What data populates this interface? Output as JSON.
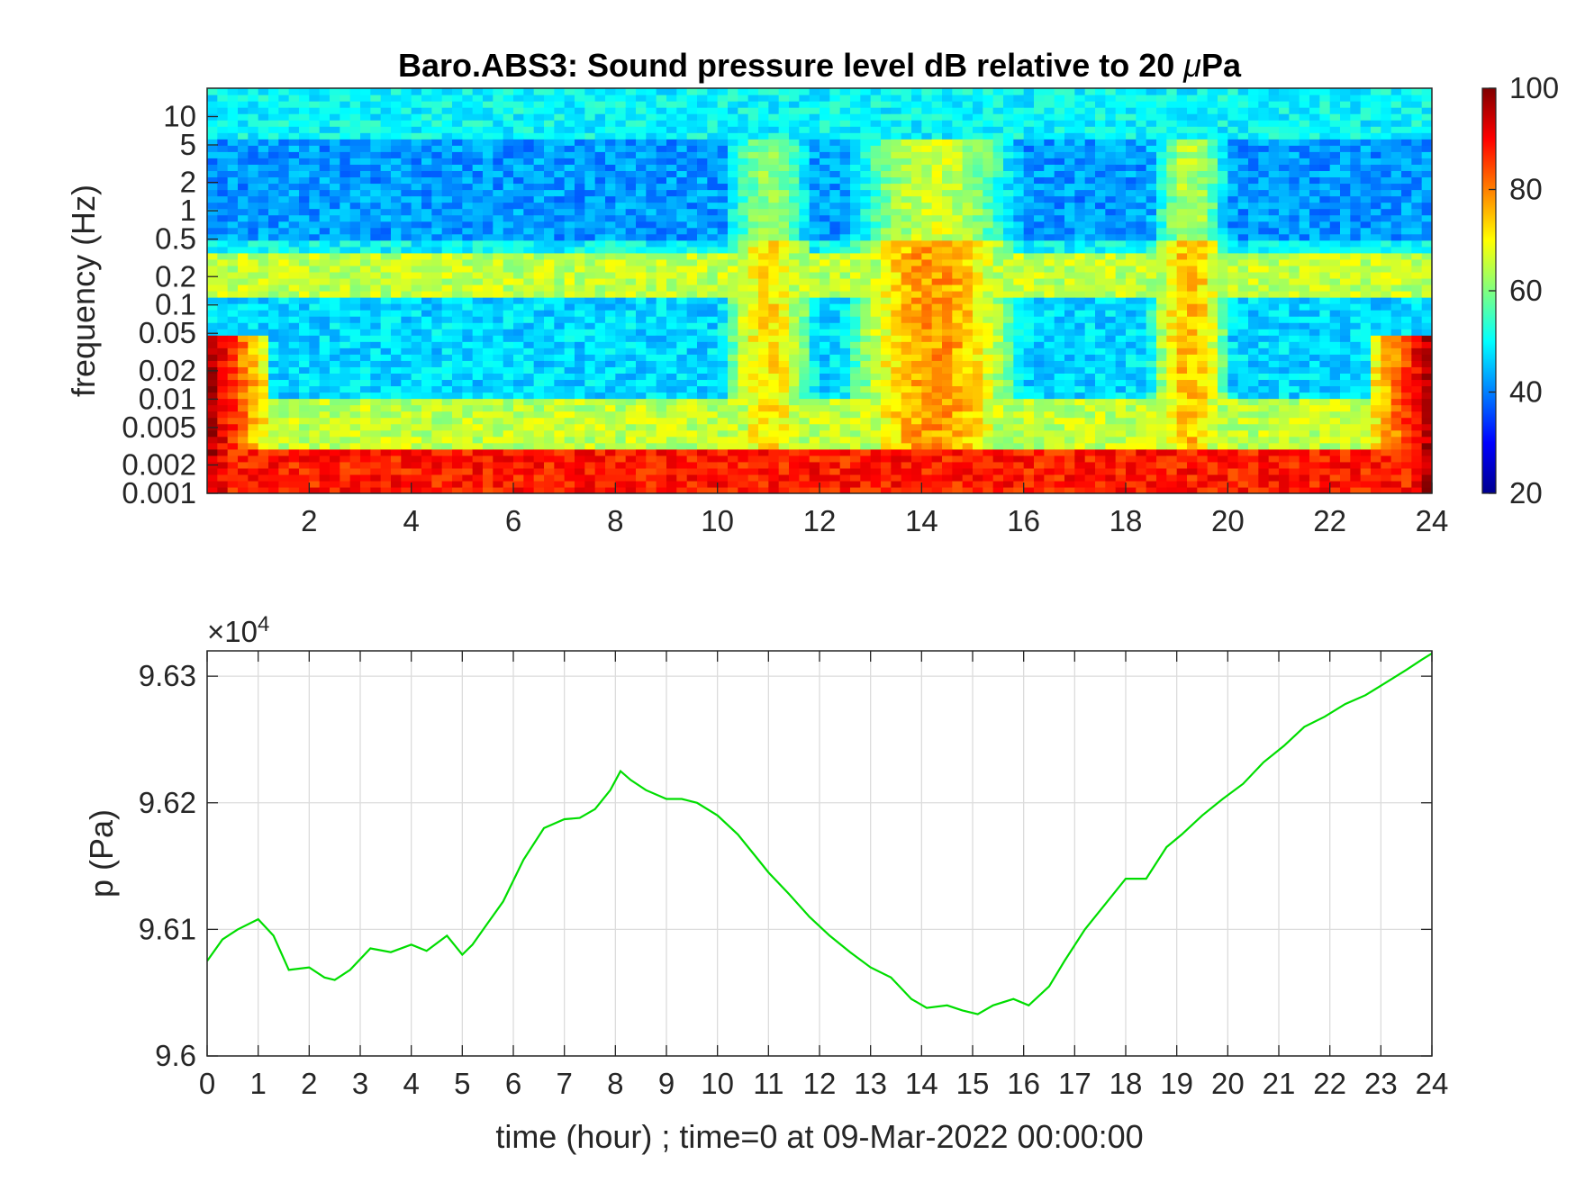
{
  "chart_data": [
    {
      "type": "heatmap",
      "title_prefix": "Baro.ABS3: Sound pressure level dB relative to 20 ",
      "title_mu": "μ",
      "title_suffix": "Pa",
      "xlabel": "",
      "ylabel": "frequency (Hz)",
      "xlim": [
        0,
        24
      ],
      "x_ticks": [
        2,
        4,
        6,
        8,
        10,
        12,
        14,
        16,
        18,
        20,
        22,
        24
      ],
      "y_scale": "log",
      "ylim": [
        0.001,
        20
      ],
      "y_ticks": [
        {
          "value": 0.001,
          "label": "0.001"
        },
        {
          "value": 0.002,
          "label": "0.002"
        },
        {
          "value": 0.005,
          "label": "0.005"
        },
        {
          "value": 0.01,
          "label": "0.01"
        },
        {
          "value": 0.02,
          "label": "0.02"
        },
        {
          "value": 0.05,
          "label": "0.05"
        },
        {
          "value": 0.1,
          "label": "0.1"
        },
        {
          "value": 0.2,
          "label": "0.2"
        },
        {
          "value": 0.5,
          "label": "0.5"
        },
        {
          "value": 1,
          "label": "1"
        },
        {
          "value": 2,
          "label": "2"
        },
        {
          "value": 5,
          "label": "5"
        },
        {
          "value": 10,
          "label": "10"
        }
      ],
      "colormap": "jet",
      "colorbar": {
        "range": [
          20,
          100
        ],
        "ticks": [
          20,
          40,
          60,
          80,
          100
        ]
      },
      "bands_db": [
        {
          "freq_range": [
            6,
            20
          ],
          "level": 50
        },
        {
          "freq_range": [
            0.5,
            6
          ],
          "level": 42
        },
        {
          "freq_range": [
            0.12,
            0.35
          ],
          "level": 65
        },
        {
          "freq_range": [
            0.01,
            0.12
          ],
          "level": 47
        },
        {
          "freq_range": [
            0.003,
            0.01
          ],
          "level": 65
        },
        {
          "freq_range": [
            0.001,
            0.003
          ],
          "level": 88
        }
      ],
      "active_periods_db": [
        {
          "hours": [
            10,
            12
          ],
          "level": 72
        },
        {
          "hours": [
            12,
            16.5
          ],
          "level": 78
        },
        {
          "hours": [
            18.5,
            20
          ],
          "level": 75
        }
      ]
    },
    {
      "type": "line",
      "xlabel": "time (hour) ; time=0 at 09-Mar-2022 00:00:00",
      "ylabel": "p (Pa)",
      "exponent_label": "×10",
      "exponent_power": "4",
      "xlim": [
        0,
        24
      ],
      "ylim": [
        96000,
        96320
      ],
      "x_ticks": [
        0,
        1,
        2,
        3,
        4,
        5,
        6,
        7,
        8,
        9,
        10,
        11,
        12,
        13,
        14,
        15,
        16,
        17,
        18,
        19,
        20,
        21,
        22,
        23,
        24
      ],
      "y_ticks": [
        {
          "value": 96000,
          "label": "9.6"
        },
        {
          "value": 96100,
          "label": "9.61"
        },
        {
          "value": 96200,
          "label": "9.62"
        },
        {
          "value": 96300,
          "label": "9.63"
        }
      ],
      "grid": true,
      "line_color": "#00dd00",
      "series": [
        {
          "x": [
            0,
            0.3,
            0.6,
            1.0,
            1.3,
            1.6,
            2.0,
            2.3,
            2.5,
            2.8,
            3.2,
            3.6,
            4.0,
            4.3,
            4.7,
            5.0,
            5.2,
            5.5,
            5.8,
            6.2,
            6.6,
            7.0,
            7.3,
            7.6,
            7.9,
            8.1,
            8.3,
            8.6,
            9.0,
            9.3,
            9.6,
            10.0,
            10.4,
            10.8,
            11.0,
            11.4,
            11.8,
            12.2,
            12.6,
            13.0,
            13.4,
            13.8,
            14.1,
            14.5,
            14.8,
            15.1,
            15.4,
            15.8,
            16.1,
            16.5,
            16.8,
            17.2,
            17.6,
            18.0,
            18.4,
            18.8,
            19.1,
            19.5,
            19.9,
            20.3,
            20.7,
            21.1,
            21.5,
            21.9,
            22.3,
            22.7,
            23.1,
            23.5,
            23.8,
            24.0
          ],
          "y": [
            96075,
            96092,
            96100,
            96108,
            96095,
            96068,
            96070,
            96062,
            96060,
            96068,
            96085,
            96082,
            96088,
            96083,
            96095,
            96080,
            96088,
            96105,
            96122,
            96155,
            96180,
            96187,
            96188,
            96195,
            96210,
            96225,
            96218,
            96210,
            96203,
            96203,
            96200,
            96190,
            96175,
            96155,
            96145,
            96128,
            96110,
            96095,
            96082,
            96070,
            96062,
            96045,
            96038,
            96040,
            96036,
            96033,
            96040,
            96045,
            96040,
            96055,
            96075,
            96100,
            96120,
            96140,
            96140,
            96165,
            96175,
            96190,
            96203,
            96215,
            96232,
            96245,
            96260,
            96268,
            96278,
            96285,
            96295,
            96305,
            96313,
            96318
          ]
        }
      ]
    }
  ]
}
